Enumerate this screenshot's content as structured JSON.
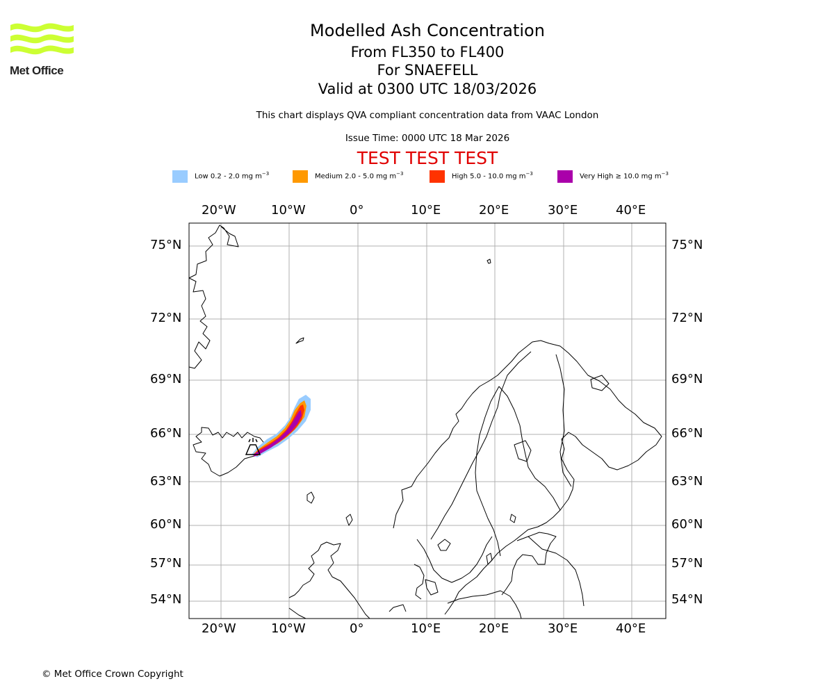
{
  "header": {
    "title": "Modelled Ash Concentration",
    "levels": "From FL350 to FL400",
    "volcano": "For SNAEFELL",
    "valid": "Valid at 0300 UTC 18/03/2026",
    "subtitle": "This chart displays QVA compliant concentration data from VAAC London",
    "issue_time": "Issue Time: 0000 UTC 18 Mar 2026",
    "test_banner": "TEST TEST TEST"
  },
  "logo": {
    "text": "Met Office",
    "color": "#ccff33"
  },
  "legend": [
    {
      "label": "Low 0.2 - 2.0 mg m",
      "exp": "−3",
      "color": "#99ccff"
    },
    {
      "label": "Medium 2.0 - 5.0 mg m",
      "exp": "−3",
      "color": "#ff9900"
    },
    {
      "label": "High 5.0 - 10.0 mg m",
      "exp": "−3",
      "color": "#ff3300"
    },
    {
      "label": "Very High ≥ 10.0 mg m",
      "exp": "−3",
      "color": "#aa00aa"
    }
  ],
  "map": {
    "lon_labels": [
      "20°W",
      "10°W",
      "0°",
      "10°E",
      "20°E",
      "30°E",
      "40°E"
    ],
    "lat_labels": [
      "75°N",
      "72°N",
      "69°N",
      "66°N",
      "63°N",
      "60°N",
      "57°N",
      "54°N"
    ],
    "lon_range": [
      -24.6,
      45
    ],
    "lat_range": [
      53,
      76
    ],
    "gridline_color": "#b0b0b0"
  },
  "footer": {
    "copyright": "© Met Office Crown Copyright"
  }
}
